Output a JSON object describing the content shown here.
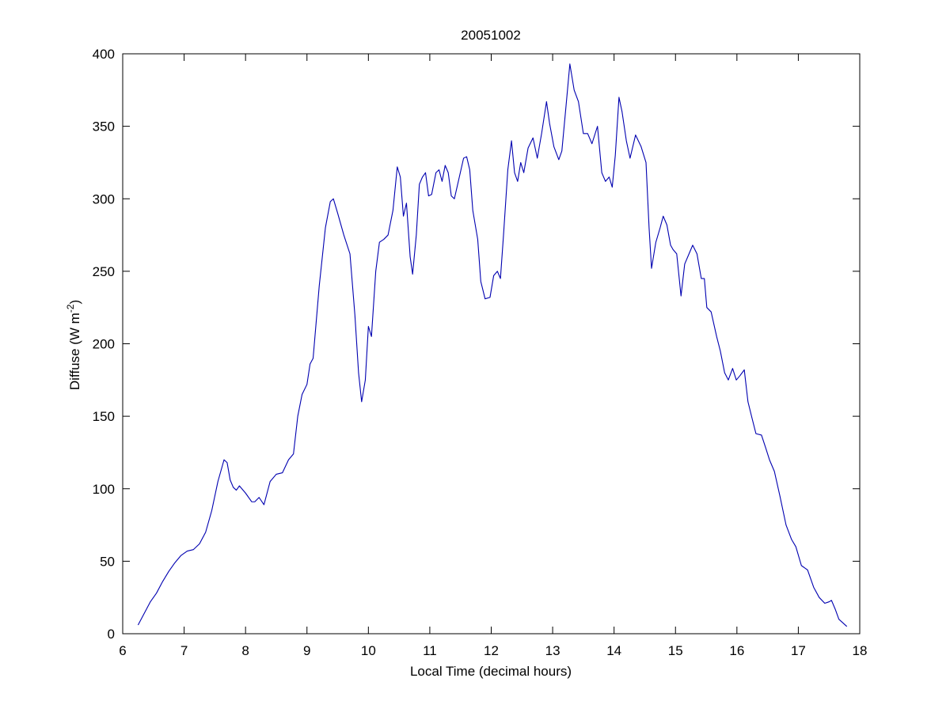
{
  "chart_data": {
    "type": "line",
    "title": "20051002",
    "x_label": "Local Time (decimal hours)",
    "y_label": [
      "Diffuse (W m",
      "-2",
      ")"
    ],
    "xlim": [
      6,
      18
    ],
    "xticks": [
      6,
      7,
      8,
      9,
      10,
      11,
      12,
      13,
      14,
      15,
      16,
      17,
      18
    ],
    "ylim": [
      0,
      400
    ],
    "yticks": [
      0,
      50,
      100,
      150,
      200,
      250,
      300,
      350,
      400
    ],
    "grid": false,
    "x": [
      6.25,
      6.35,
      6.45,
      6.55,
      6.65,
      6.75,
      6.85,
      6.95,
      7.05,
      7.15,
      7.25,
      7.35,
      7.45,
      7.55,
      7.65,
      7.7,
      7.75,
      7.8,
      7.85,
      7.9,
      8.0,
      8.1,
      8.15,
      8.22,
      8.3,
      8.4,
      8.5,
      8.6,
      8.7,
      8.78,
      8.85,
      8.92,
      9.0,
      9.05,
      9.1,
      9.2,
      9.3,
      9.38,
      9.43,
      9.5,
      9.6,
      9.7,
      9.78,
      9.84,
      9.89,
      9.95,
      10.0,
      10.05,
      10.12,
      10.18,
      10.25,
      10.32,
      10.4,
      10.47,
      10.52,
      10.57,
      10.62,
      10.68,
      10.72,
      10.78,
      10.83,
      10.88,
      10.93,
      10.98,
      11.03,
      11.1,
      11.15,
      11.2,
      11.25,
      11.3,
      11.35,
      11.4,
      11.47,
      11.55,
      11.6,
      11.65,
      11.7,
      11.78,
      11.83,
      11.9,
      11.98,
      12.04,
      12.1,
      12.15,
      12.2,
      12.27,
      12.33,
      12.38,
      12.43,
      12.48,
      12.53,
      12.6,
      12.68,
      12.75,
      12.82,
      12.9,
      12.95,
      13.02,
      13.1,
      13.15,
      13.22,
      13.28,
      13.35,
      13.42,
      13.5,
      13.57,
      13.64,
      13.73,
      13.8,
      13.86,
      13.92,
      13.97,
      14.02,
      14.08,
      14.13,
      14.2,
      14.26,
      14.35,
      14.44,
      14.52,
      14.57,
      14.61,
      14.68,
      14.75,
      14.8,
      14.86,
      14.92,
      14.96,
      15.02,
      15.09,
      15.15,
      15.22,
      15.28,
      15.35,
      15.42,
      15.47,
      15.51,
      15.58,
      15.67,
      15.73,
      15.8,
      15.86,
      15.93,
      15.99,
      16.05,
      16.12,
      16.18,
      16.25,
      16.31,
      16.4,
      16.47,
      16.53,
      16.61,
      16.7,
      16.8,
      16.89,
      16.96,
      17.05,
      17.15,
      17.25,
      17.34,
      17.43,
      17.5,
      17.54,
      17.6,
      17.66,
      17.79
    ],
    "series": [
      {
        "color": "#0000b0",
        "values": [
          6,
          14,
          22,
          28,
          36,
          43,
          49,
          54,
          57,
          58,
          62,
          70,
          85,
          105,
          120,
          118,
          106,
          101,
          99,
          102,
          97,
          91,
          91,
          94,
          89,
          105,
          110,
          111,
          120,
          124,
          150,
          165,
          172,
          186,
          190,
          240,
          280,
          298,
          300,
          290,
          275,
          262,
          220,
          180,
          160,
          175,
          212,
          205,
          250,
          270,
          272,
          275,
          292,
          322,
          315,
          288,
          297,
          260,
          248,
          275,
          310,
          315,
          318,
          302,
          303,
          318,
          320,
          312,
          323,
          318,
          302,
          300,
          313,
          328,
          329,
          320,
          292,
          272,
          243,
          231,
          232,
          247,
          250,
          245,
          275,
          320,
          340,
          318,
          312,
          325,
          318,
          335,
          342,
          328,
          345,
          367,
          352,
          336,
          327,
          333,
          365,
          393,
          375,
          367,
          345,
          345,
          338,
          350,
          318,
          312,
          315,
          308,
          330,
          370,
          360,
          340,
          328,
          344,
          336,
          325,
          280,
          252,
          270,
          280,
          288,
          282,
          268,
          265,
          262,
          233,
          255,
          262,
          268,
          262,
          245,
          245,
          225,
          222,
          205,
          195,
          180,
          175,
          183,
          175,
          178,
          182,
          160,
          148,
          138,
          137,
          128,
          120,
          112,
          95,
          75,
          65,
          60,
          47,
          44,
          32,
          25,
          21,
          22,
          23,
          17,
          10,
          5
        ]
      }
    ]
  }
}
